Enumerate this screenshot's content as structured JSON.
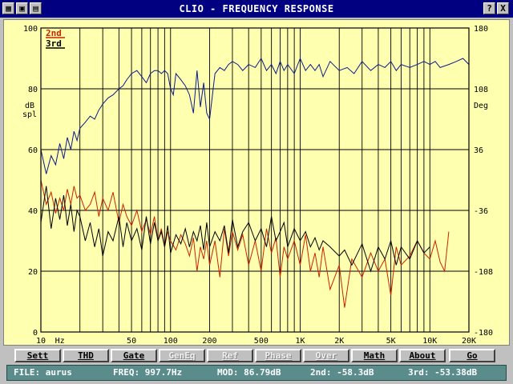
{
  "window": {
    "title": "CLIO - FREQUENCY RESPONSE",
    "help_button": "?",
    "close_button": "X"
  },
  "chart_data": {
    "type": "line",
    "x_scale": "log",
    "xlim": [
      10,
      20000
    ],
    "ylim": [
      0,
      100
    ],
    "ylim_right": [
      -180,
      180
    ],
    "ylabel": "dB spl",
    "ylabel_right": "Deg",
    "xlabel": "Hz",
    "y_ticks": [
      "0",
      "20",
      "40",
      "60",
      "80",
      "100"
    ],
    "y_ticks_right": [
      "-180",
      "-108",
      "-36",
      "36",
      "108",
      "180"
    ],
    "x_ticks": [
      {
        "value": 10,
        "label": "10"
      },
      {
        "value": 50,
        "label": "50"
      },
      {
        "value": 100,
        "label": "100"
      },
      {
        "value": 200,
        "label": "200"
      },
      {
        "value": 500,
        "label": "500"
      },
      {
        "value": 1000,
        "label": "1K"
      },
      {
        "value": 2000,
        "label": "2K"
      },
      {
        "value": 5000,
        "label": "5K"
      },
      {
        "value": 10000,
        "label": "10K"
      },
      {
        "value": 20000,
        "label": "20K"
      }
    ],
    "grid": true,
    "legend_position": "top-left",
    "legend": [
      {
        "label": "2nd",
        "color": "#cc2200"
      },
      {
        "label": "3rd",
        "color": "#000000"
      }
    ],
    "series": [
      {
        "color": "#0a1a8a",
        "x": [
          10,
          11,
          12,
          13,
          14,
          15,
          16,
          17,
          18,
          19,
          20,
          22,
          24,
          26,
          28,
          30,
          33,
          36,
          40,
          43,
          46,
          50,
          55,
          60,
          65,
          70,
          75,
          80,
          85,
          90,
          95,
          100,
          105,
          110,
          120,
          130,
          140,
          150,
          160,
          170,
          180,
          190,
          200,
          220,
          240,
          260,
          280,
          300,
          330,
          360,
          400,
          450,
          500,
          550,
          600,
          650,
          700,
          750,
          800,
          900,
          1000,
          1100,
          1200,
          1300,
          1400,
          1500,
          1700,
          2000,
          2300,
          2600,
          3000,
          3500,
          4000,
          4500,
          5000,
          5500,
          6000,
          7000,
          8000,
          9000,
          10000,
          11000,
          12000,
          14000,
          16000,
          18000,
          20000
        ],
        "values": [
          60,
          52,
          58,
          55,
          62,
          57,
          64,
          60,
          66,
          63,
          67,
          69,
          71,
          70,
          73,
          75,
          77,
          78,
          80,
          81,
          83,
          85,
          86,
          84,
          82,
          85,
          86,
          86,
          85,
          86,
          85,
          80,
          78,
          85,
          83,
          81,
          78,
          72,
          86,
          74,
          82,
          72,
          70,
          85,
          87,
          86,
          88,
          89,
          88,
          86,
          88,
          87,
          90,
          86,
          88,
          85,
          89,
          86,
          88,
          85,
          90,
          86,
          88,
          86,
          88,
          84,
          89,
          86,
          87,
          85,
          89,
          86,
          88,
          87,
          89,
          86,
          88,
          87,
          88,
          89,
          88,
          89,
          87,
          88,
          89,
          90,
          88
        ]
      },
      {
        "name": "2nd",
        "color": "#cc2200",
        "x": [
          10,
          11,
          12,
          13,
          14,
          15,
          16,
          17,
          18,
          19,
          20,
          22,
          24,
          26,
          28,
          30,
          33,
          36,
          40,
          43,
          46,
          50,
          55,
          60,
          65,
          70,
          75,
          80,
          85,
          90,
          95,
          100,
          110,
          120,
          130,
          140,
          150,
          160,
          170,
          180,
          190,
          200,
          220,
          240,
          260,
          280,
          300,
          330,
          360,
          400,
          450,
          500,
          550,
          600,
          650,
          700,
          750,
          800,
          900,
          1000,
          1100,
          1200,
          1300,
          1400,
          1500,
          1700,
          2000,
          2200,
          2500,
          3000,
          3500,
          4000,
          4500,
          5000,
          5500,
          6000,
          7000,
          8000,
          9000,
          10000,
          11000,
          12000,
          13000,
          14000
        ],
        "values": [
          50,
          42,
          46,
          39,
          44,
          40,
          47,
          42,
          48,
          44,
          45,
          40,
          42,
          46,
          38,
          44,
          40,
          46,
          36,
          42,
          38,
          35,
          40,
          33,
          37,
          32,
          38,
          30,
          34,
          28,
          33,
          30,
          27,
          32,
          29,
          25,
          31,
          20,
          28,
          24,
          30,
          22,
          30,
          18,
          34,
          25,
          33,
          27,
          32,
          22,
          30,
          20,
          34,
          26,
          31,
          18,
          28,
          24,
          30,
          22,
          32,
          20,
          26,
          18,
          28,
          14,
          22,
          8,
          24,
          18,
          26,
          20,
          24,
          12,
          28,
          22,
          25,
          30,
          26,
          24,
          30,
          23,
          20,
          33
        ]
      },
      {
        "name": "3rd",
        "color": "#000000",
        "x": [
          10,
          11,
          12,
          13,
          14,
          15,
          16,
          17,
          18,
          19,
          20,
          22,
          24,
          26,
          28,
          30,
          33,
          36,
          40,
          43,
          46,
          50,
          55,
          60,
          65,
          70,
          75,
          80,
          85,
          90,
          95,
          100,
          110,
          120,
          130,
          140,
          150,
          160,
          170,
          180,
          190,
          200,
          220,
          240,
          260,
          280,
          300,
          330,
          360,
          400,
          450,
          500,
          550,
          600,
          650,
          700,
          750,
          800,
          900,
          1000,
          1100,
          1200,
          1300,
          1400,
          1500,
          1700,
          2000,
          2200,
          2500,
          3000,
          3500,
          4000,
          4500,
          5000,
          5500,
          6000,
          7000,
          8000,
          9000,
          10000
        ],
        "values": [
          36,
          48,
          34,
          44,
          37,
          45,
          35,
          42,
          33,
          40,
          38,
          30,
          36,
          28,
          34,
          25,
          33,
          30,
          38,
          28,
          36,
          30,
          34,
          27,
          38,
          29,
          36,
          30,
          33,
          28,
          35,
          26,
          32,
          29,
          34,
          28,
          33,
          30,
          35,
          27,
          36,
          28,
          33,
          30,
          35,
          26,
          37,
          28,
          33,
          36,
          30,
          34,
          28,
          38,
          30,
          33,
          36,
          28,
          34,
          30,
          33,
          28,
          31,
          27,
          30,
          28,
          25,
          27,
          22,
          29,
          20,
          28,
          24,
          30,
          22,
          28,
          24,
          30,
          26,
          28
        ]
      }
    ]
  },
  "buttons": [
    {
      "label": "Sett",
      "enabled": true
    },
    {
      "label": "THD",
      "enabled": true
    },
    {
      "label": "Gate",
      "enabled": true
    },
    {
      "label": "GenEq",
      "enabled": false
    },
    {
      "label": "Ref",
      "enabled": false
    },
    {
      "label": "Phase",
      "enabled": false
    },
    {
      "label": "Over",
      "enabled": false
    },
    {
      "label": "Math",
      "enabled": true
    },
    {
      "label": "About",
      "enabled": true
    },
    {
      "label": "Go",
      "enabled": true
    }
  ],
  "status": {
    "file": "FILE: aurus",
    "freq": "FREQ: 997.7Hz",
    "mod": "MOD: 86.79dB",
    "second": "2nd: -58.3dB",
    "third": "3rd: -53.38dB"
  }
}
